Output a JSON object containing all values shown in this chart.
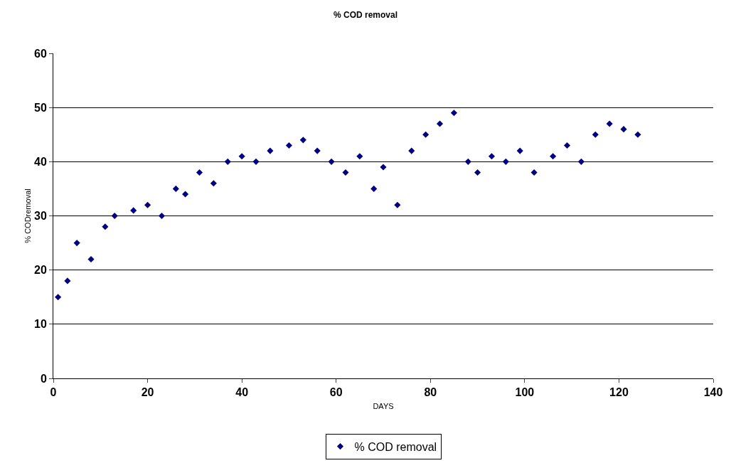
{
  "chart_data": {
    "type": "scatter",
    "title": "% COD removal",
    "xlabel": "DAYS",
    "ylabel": "% CODremoval",
    "xlim": [
      0,
      140
    ],
    "xticks": [
      0,
      20,
      40,
      60,
      80,
      100,
      120,
      140
    ],
    "ylim": [
      0,
      60
    ],
    "yticks": [
      0,
      10,
      20,
      30,
      40,
      50,
      60
    ],
    "grid": "y",
    "legend": "bottom",
    "marker": "diamond",
    "series": [
      {
        "name": "% COD removal",
        "color": "#000080",
        "x": [
          1,
          3,
          5,
          8,
          11,
          13,
          17,
          20,
          23,
          26,
          28,
          31,
          34,
          37,
          40,
          43,
          46,
          50,
          53,
          56,
          59,
          62,
          65,
          68,
          70,
          73,
          76,
          79,
          82,
          85,
          88,
          90,
          93,
          96,
          99,
          102,
          106,
          109,
          112,
          115,
          118,
          121,
          124
        ],
        "values": [
          15,
          18,
          25,
          22,
          28,
          30,
          31,
          32,
          30,
          35,
          34,
          38,
          36,
          40,
          41,
          40,
          42,
          43,
          44,
          42,
          40,
          38,
          41,
          35,
          39,
          32,
          42,
          45,
          47,
          49,
          40,
          38,
          41,
          40,
          42,
          38,
          41,
          43,
          40,
          45,
          47,
          46,
          45
        ]
      }
    ]
  }
}
